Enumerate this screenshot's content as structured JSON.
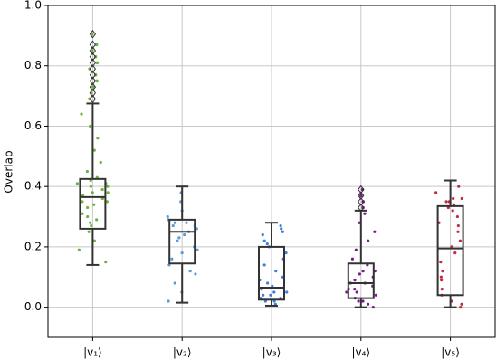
{
  "chart_data": {
    "type": "box",
    "ylabel": "Overlap",
    "categories": [
      "|v₁⟩",
      "|v₂⟩",
      "|v₃⟩",
      "|v₄⟩",
      "|v₅⟩"
    ],
    "ylim": [
      -0.1,
      1.0
    ],
    "yticks": [
      {
        "value": 0,
        "label": "0.0"
      },
      0.2,
      0.4,
      0.6,
      0.8,
      {
        "value": 1,
        "label": "1.0"
      }
    ],
    "grid": true,
    "boxes": [
      {
        "color": "#6fb23f",
        "whislo": 0.14,
        "q1": 0.26,
        "med": 0.365,
        "q3": 0.425,
        "whishi": 0.675,
        "fliers": [
          0.69,
          0.71,
          0.73,
          0.75,
          0.77,
          0.79,
          0.81,
          0.83,
          0.85,
          0.87,
          0.905
        ],
        "points": [
          0.15,
          0.19,
          0.22,
          0.25,
          0.27,
          0.29,
          0.31,
          0.33,
          0.34,
          0.35,
          0.36,
          0.37,
          0.38,
          0.39,
          0.4,
          0.41,
          0.42,
          0.43,
          0.45,
          0.48,
          0.52,
          0.56,
          0.6,
          0.64,
          0.3,
          0.38,
          0.41,
          0.35,
          0.28,
          0.4
        ]
      },
      {
        "color": "#5b9bd5",
        "whislo": 0.015,
        "q1": 0.145,
        "med": 0.25,
        "q3": 0.29,
        "whishi": 0.4,
        "fliers": [],
        "points": [
          0.02,
          0.05,
          0.08,
          0.11,
          0.14,
          0.16,
          0.18,
          0.2,
          0.22,
          0.24,
          0.25,
          0.26,
          0.27,
          0.28,
          0.29,
          0.3,
          0.32,
          0.35,
          0.38,
          0.27,
          0.23,
          0.19,
          0.28,
          0.12,
          0.26
        ]
      },
      {
        "color": "#3d7fd9",
        "whislo": 0.005,
        "q1": 0.025,
        "med": 0.065,
        "q3": 0.2,
        "whishi": 0.28,
        "fliers": [],
        "points": [
          0.01,
          0.02,
          0.03,
          0.03,
          0.04,
          0.05,
          0.06,
          0.07,
          0.08,
          0.1,
          0.12,
          0.14,
          0.16,
          0.18,
          0.2,
          0.22,
          0.24,
          0.26,
          0.27,
          0.02,
          0.04,
          0.05,
          0.09,
          0.25,
          0.21
        ]
      },
      {
        "color": "#7d1a8c",
        "whislo": 0.0,
        "q1": 0.03,
        "med": 0.08,
        "q3": 0.145,
        "whishi": 0.32,
        "fliers": [
          0.33,
          0.35,
          0.37,
          0.39
        ],
        "points": [
          0.0,
          0.01,
          0.02,
          0.03,
          0.04,
          0.05,
          0.06,
          0.07,
          0.08,
          0.09,
          0.1,
          0.11,
          0.12,
          0.14,
          0.16,
          0.19,
          0.22,
          0.25,
          0.28,
          0.31,
          0.02,
          0.05,
          0.08,
          0.12,
          0.06
        ]
      },
      {
        "color": "#c42a3e",
        "whislo": 0.0,
        "q1": 0.04,
        "med": 0.195,
        "q3": 0.335,
        "whishi": 0.42,
        "fliers": [],
        "points": [
          0.0,
          0.02,
          0.04,
          0.06,
          0.09,
          0.12,
          0.15,
          0.18,
          0.2,
          0.22,
          0.25,
          0.28,
          0.3,
          0.32,
          0.34,
          0.35,
          0.36,
          0.38,
          0.4,
          0.01,
          0.33,
          0.35,
          0.1,
          0.27,
          0.36
        ]
      }
    ]
  }
}
